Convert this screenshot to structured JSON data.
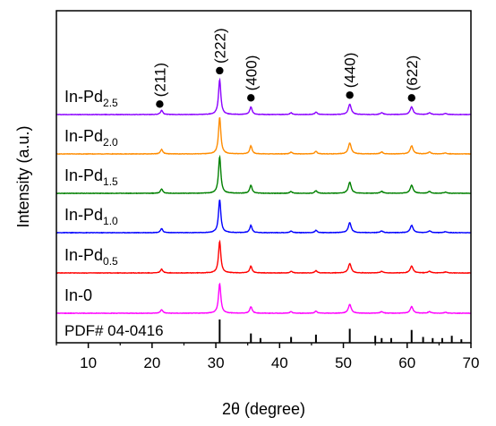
{
  "chart_data": {
    "type": "line",
    "xlabel": "2θ (degree)",
    "ylabel": "Intensity (a.u.)",
    "xlim": [
      5,
      70
    ],
    "xticks": [
      10,
      20,
      30,
      40,
      50,
      60,
      70
    ],
    "xtick_labels": [
      "10",
      "20",
      "30",
      "40",
      "50",
      "60",
      "70"
    ],
    "yticks_shown": false,
    "grid": false,
    "peaks": [
      {
        "pos": 21.5,
        "height": 0.12
      },
      {
        "pos": 30.6,
        "height": 1.0
      },
      {
        "pos": 35.5,
        "height": 0.22
      },
      {
        "pos": 41.8,
        "height": 0.05
      },
      {
        "pos": 45.7,
        "height": 0.07
      },
      {
        "pos": 51.0,
        "height": 0.3
      },
      {
        "pos": 56.0,
        "height": 0.05
      },
      {
        "pos": 60.7,
        "height": 0.22
      },
      {
        "pos": 63.5,
        "height": 0.05
      },
      {
        "pos": 66.0,
        "height": 0.03
      }
    ],
    "series": [
      {
        "base": "In-Pd",
        "sub": "2.5",
        "color": "#8b00ff",
        "scale": 1.0
      },
      {
        "base": "In-Pd",
        "sub": "2.0",
        "color": "#ff8c00",
        "scale": 1.05
      },
      {
        "base": "In-Pd",
        "sub": "1.5",
        "color": "#008000",
        "scale": 1.05
      },
      {
        "base": "In-Pd",
        "sub": "1.0",
        "color": "#0000ff",
        "scale": 0.95
      },
      {
        "base": "In-Pd",
        "sub": "0.5",
        "color": "#ff0000",
        "scale": 0.9
      },
      {
        "base": "In-0",
        "sub": "",
        "color": "#ff00ff",
        "scale": 0.85
      }
    ],
    "annotations": [
      {
        "label": "(211)",
        "x": 21.2
      },
      {
        "label": "(222)",
        "x": 30.6
      },
      {
        "label": "(400)",
        "x": 35.5
      },
      {
        "label": "(440)",
        "x": 51.0
      },
      {
        "label": "(622)",
        "x": 60.7
      }
    ],
    "reference": {
      "label": "PDF# 04-0416",
      "sticks": [
        {
          "x": 30.6,
          "h": 1.0
        },
        {
          "x": 35.5,
          "h": 0.4
        },
        {
          "x": 37.0,
          "h": 0.2
        },
        {
          "x": 41.8,
          "h": 0.25
        },
        {
          "x": 45.7,
          "h": 0.35
        },
        {
          "x": 51.0,
          "h": 0.6
        },
        {
          "x": 55.0,
          "h": 0.3
        },
        {
          "x": 56.0,
          "h": 0.2
        },
        {
          "x": 57.5,
          "h": 0.2
        },
        {
          "x": 60.7,
          "h": 0.55
        },
        {
          "x": 62.5,
          "h": 0.25
        },
        {
          "x": 64.0,
          "h": 0.2
        },
        {
          "x": 65.5,
          "h": 0.2
        },
        {
          "x": 67.0,
          "h": 0.3
        },
        {
          "x": 68.5,
          "h": 0.15
        }
      ]
    }
  }
}
